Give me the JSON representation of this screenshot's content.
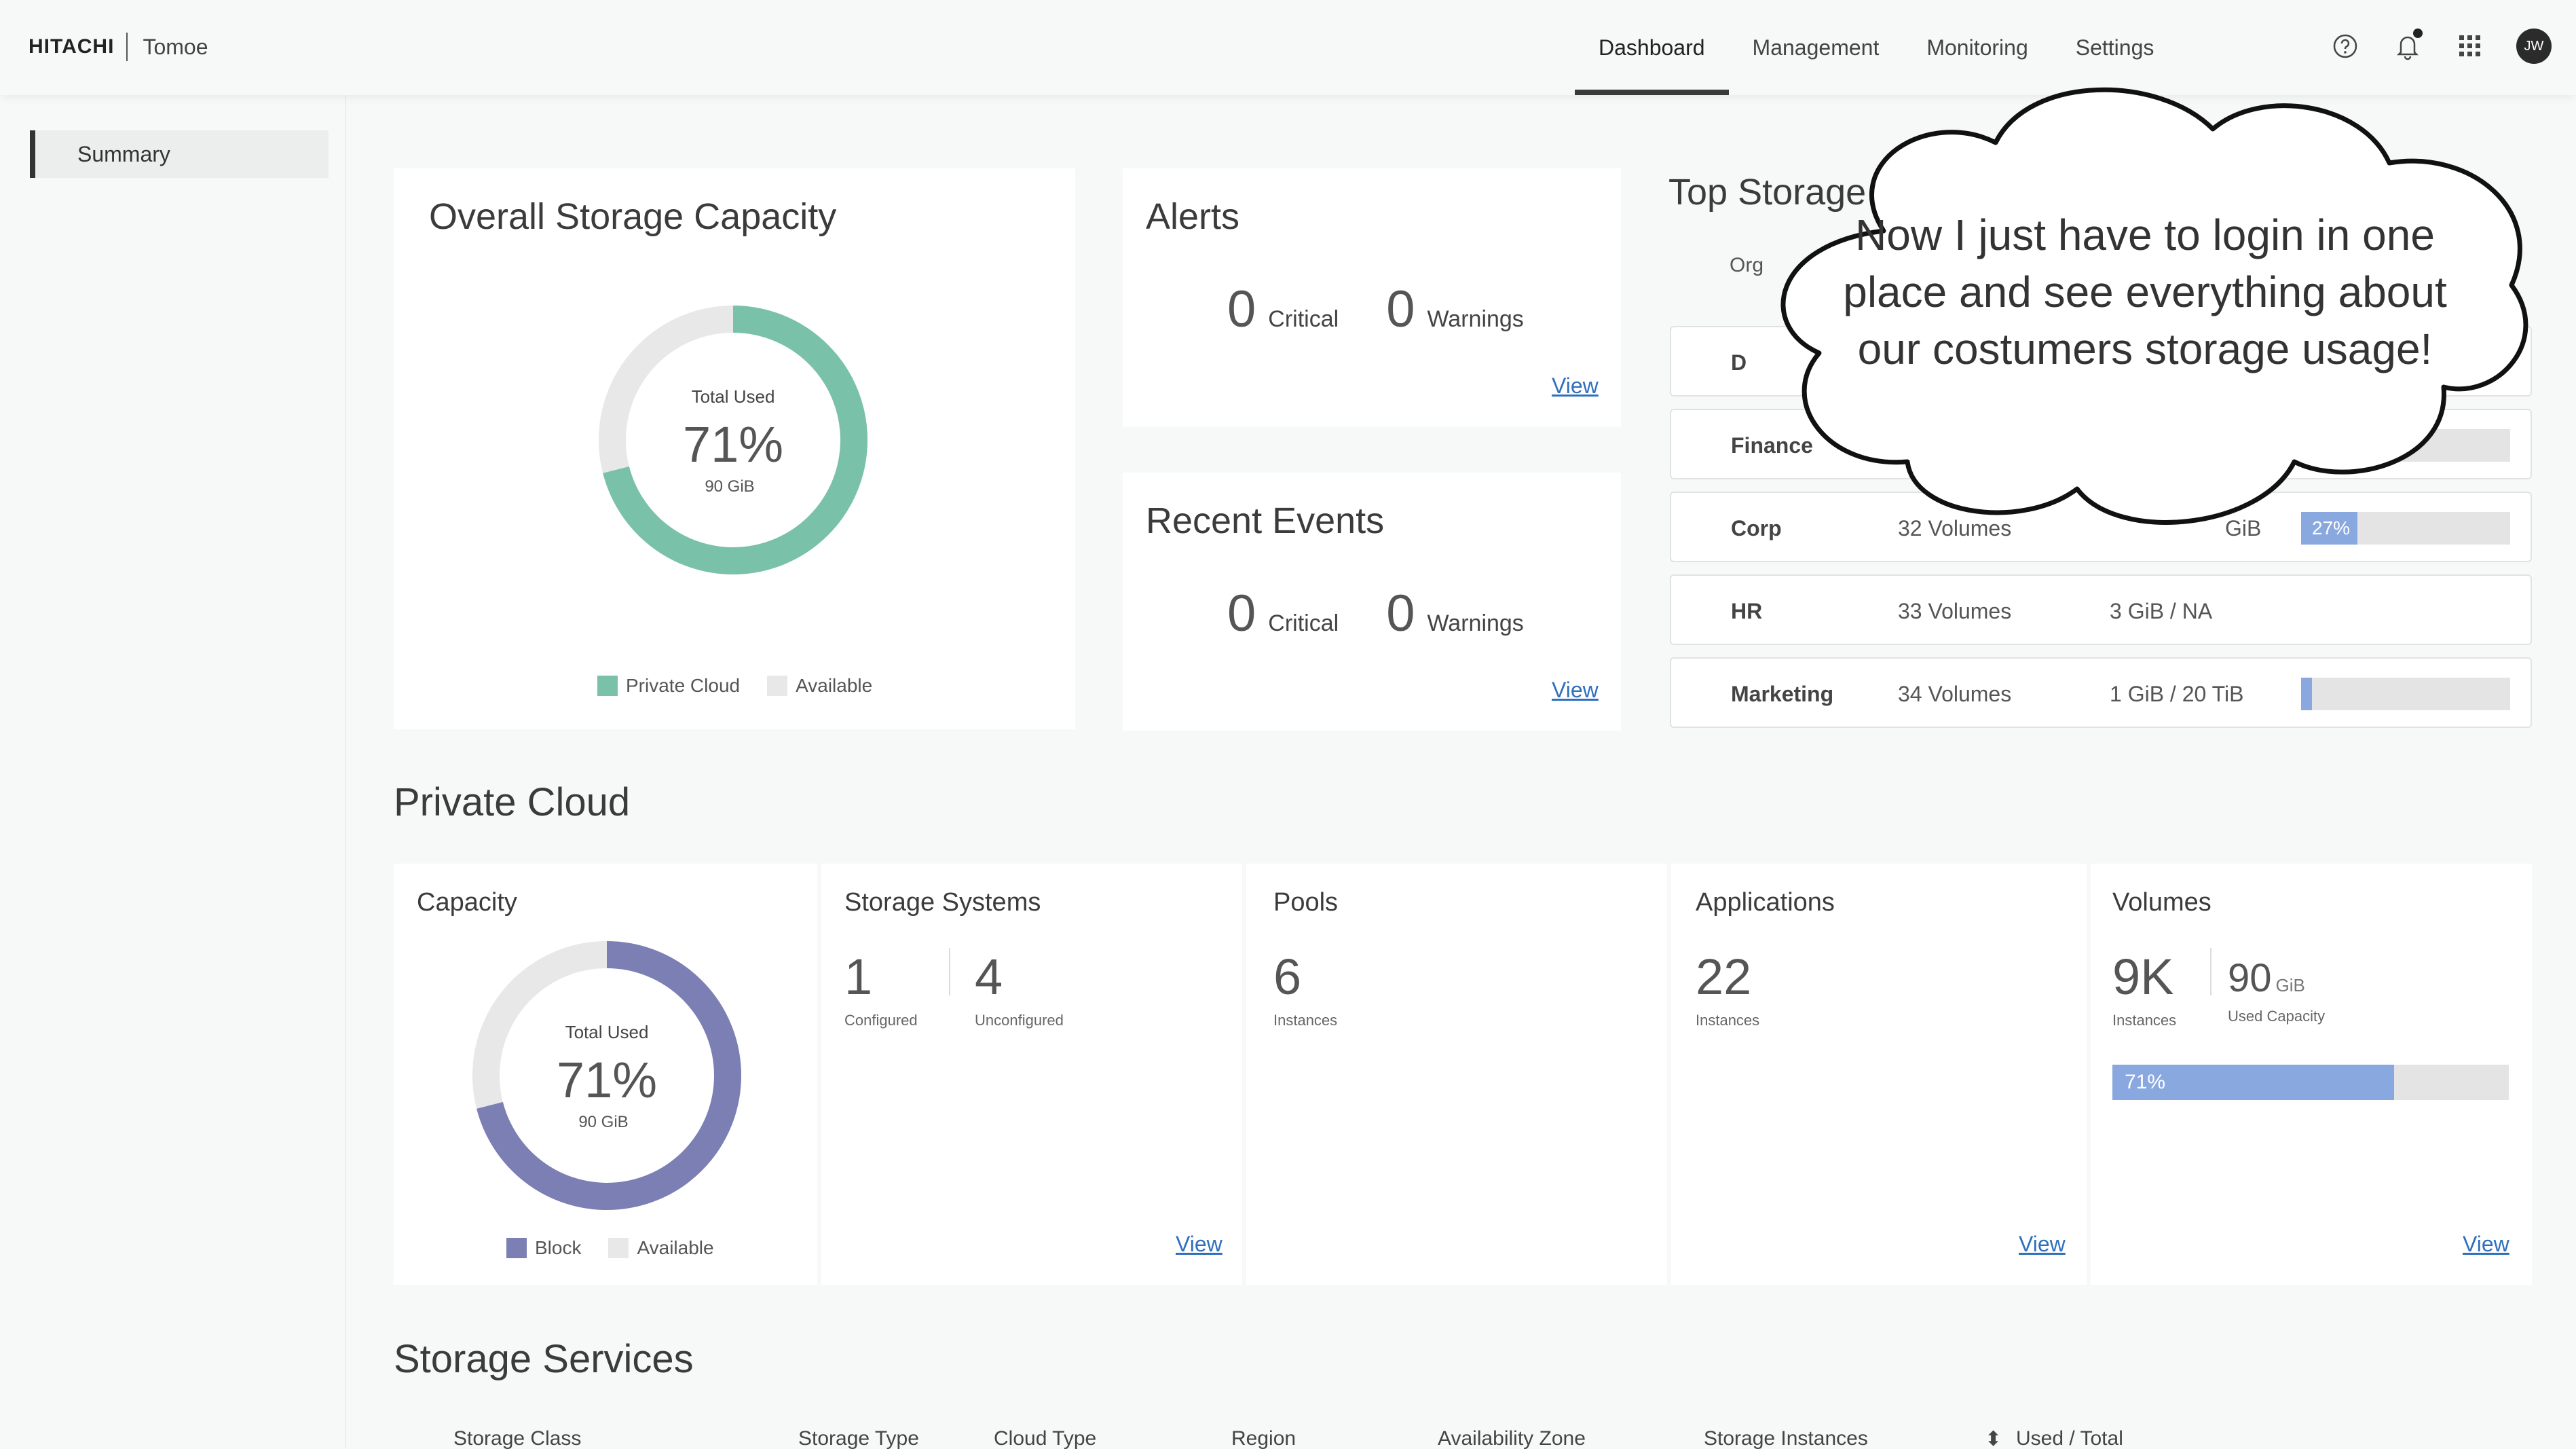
{
  "header": {
    "brand_logo": "HITACHI",
    "brand_name": "Tomoe",
    "tabs": [
      "Dashboard",
      "Management",
      "Monitoring",
      "Settings"
    ],
    "active_tab": "Dashboard",
    "avatar_initials": "JW"
  },
  "sidebar": {
    "items": [
      {
        "label": "Summary"
      }
    ]
  },
  "overall": {
    "title": "Overall Storage Capacity",
    "center_label": "Total Used",
    "center_value": "71%",
    "center_sub": "90 GiB",
    "percent_used": 71,
    "used_color": "#79c1a8",
    "available_color": "#e8e8e8",
    "legend": [
      "Private Cloud",
      "Available"
    ]
  },
  "alerts": {
    "title": "Alerts",
    "critical_count": "0",
    "critical_label": "Critical",
    "warning_count": "0",
    "warning_label": "Warnings",
    "link": "View"
  },
  "events": {
    "title": "Recent Events",
    "critical_count": "0",
    "critical_label": "Critical",
    "warning_count": "0",
    "warning_label": "Warnings",
    "link": "View"
  },
  "top_storage": {
    "title": "Top Storage",
    "header_fragment": "Org",
    "rows": [
      {
        "name": "D",
        "volumes": "",
        "used": "",
        "bar_label": "",
        "percent": 0
      },
      {
        "name": "Finance",
        "volumes": "",
        "used": "",
        "bar_label": "",
        "percent": 0
      },
      {
        "name": "Corp",
        "volumes": "32 Volumes",
        "used": "GiB",
        "bar_label": "27%",
        "percent": 27
      },
      {
        "name": "HR",
        "volumes": "33 Volumes",
        "used": "3 GiB / NA",
        "bar_label": "",
        "percent": 0
      },
      {
        "name": "Marketing",
        "volumes": "34 Volumes",
        "used": "1 GiB / 20 TiB",
        "bar_label": "3%",
        "percent": 3
      }
    ]
  },
  "private_cloud": {
    "title": "Private Cloud",
    "capacity": {
      "title": "Capacity",
      "center_label": "Total Used",
      "center_value": "71%",
      "center_sub": "90 GiB",
      "percent_used": 71,
      "used_color": "#7b7fb3",
      "available_color": "#e8e8e8",
      "legend": [
        "Block",
        "Available"
      ]
    },
    "storage_systems": {
      "title": "Storage Systems",
      "configured": "1",
      "configured_label": "Configured",
      "unconfigured": "4",
      "unconfigured_label": "Unconfigured",
      "link": "View"
    },
    "pools": {
      "title": "Pools",
      "count": "6",
      "label": "Instances"
    },
    "applications": {
      "title": "Applications",
      "count": "22",
      "label": "Instances",
      "link": "View"
    },
    "volumes": {
      "title": "Volumes",
      "count": "9K",
      "count_label": "Instances",
      "used": "90",
      "used_unit": "GiB",
      "used_label": "Used Capacity",
      "bar_label": "71%",
      "percent": 71,
      "link": "View"
    }
  },
  "storage_services": {
    "title": "Storage Services",
    "columns": [
      "Storage Class",
      "Storage Type",
      "Cloud Type",
      "Region",
      "Availability Zone",
      "Storage Instances",
      "Used / Total"
    ]
  },
  "callout": {
    "text": "Now I just have to login in one place and see everything about our costumers storage usage!"
  }
}
